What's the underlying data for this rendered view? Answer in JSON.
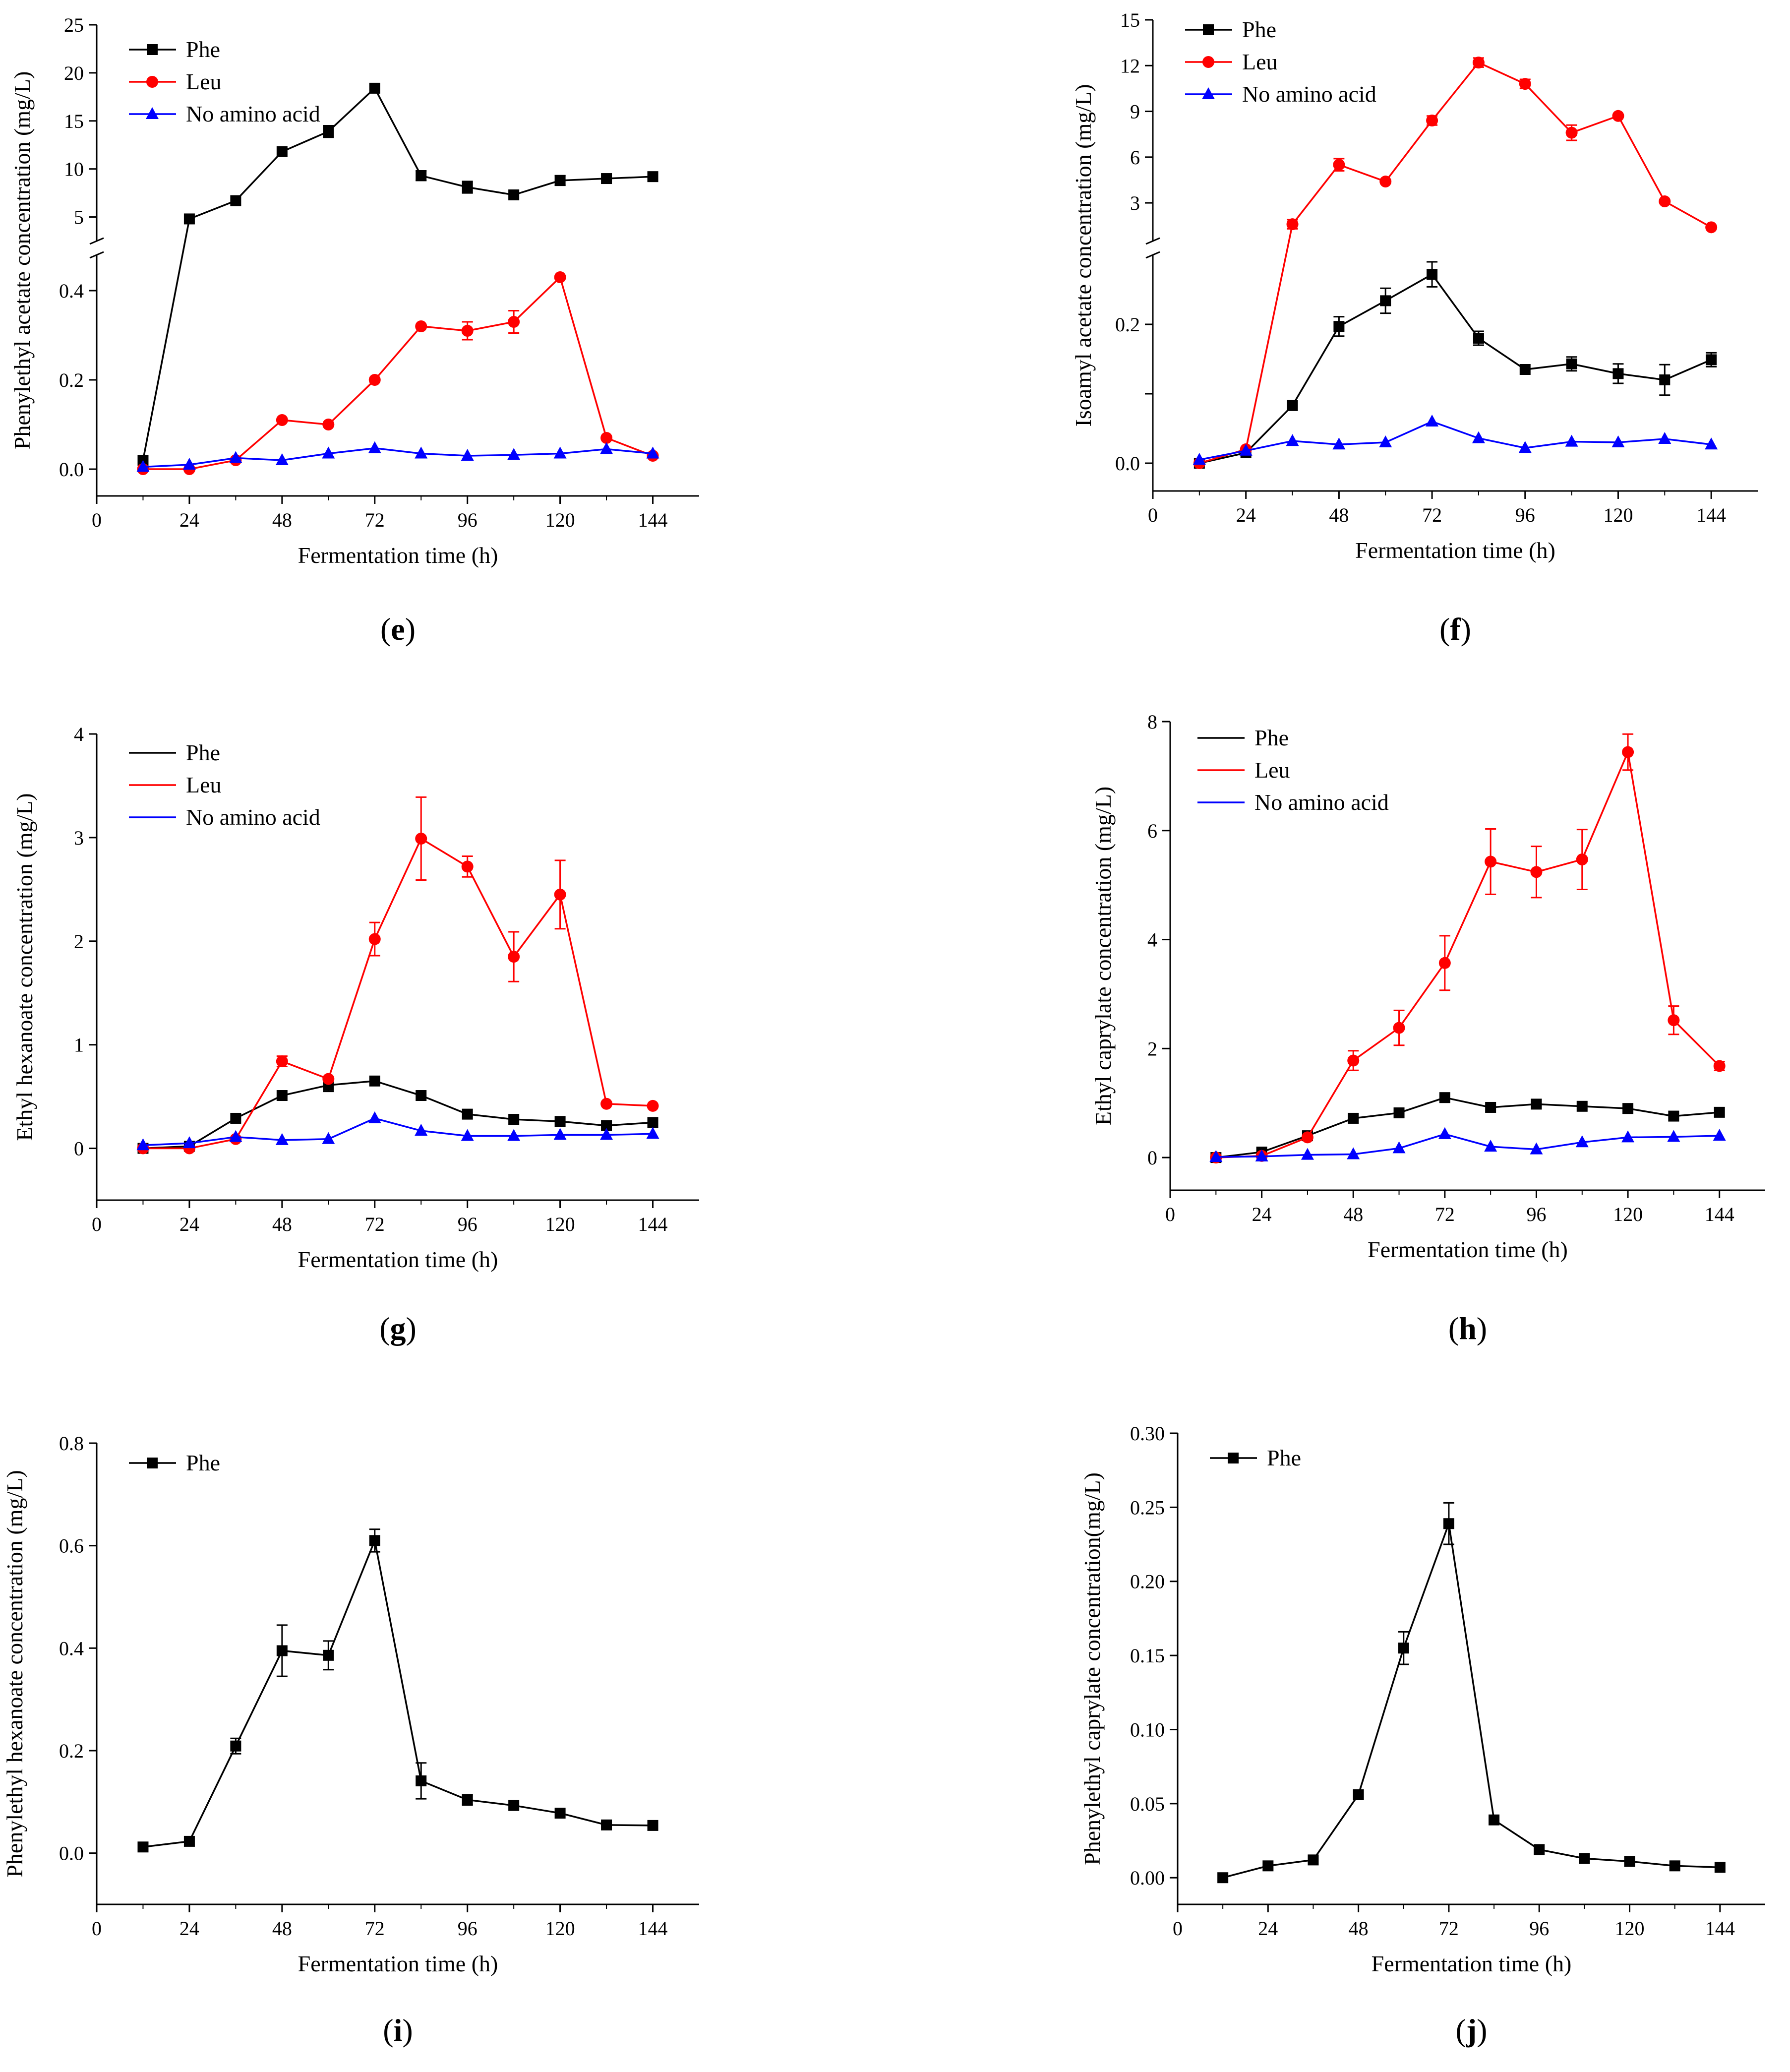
{
  "colors": {
    "Phe": "#000000",
    "Leu": "#ff0000",
    "No amino acid": "#0000ff"
  },
  "series_markers": {
    "Phe": "square",
    "Leu": "circle",
    "No amino acid": "triangle"
  },
  "chart_data": [
    {
      "id": "e",
      "label_letter": "e",
      "type": "line",
      "title": "",
      "xlabel": "Fermentation time (h)",
      "ylabel": "Phenylethyl acetate concentration (mg/L)",
      "xlim": [
        0,
        156
      ],
      "xticks": [
        "0",
        "24",
        "48",
        "72",
        "96",
        "120",
        "144"
      ],
      "broken_axis": true,
      "lower": {
        "ylim": [
          -0.06,
          0.48
        ],
        "ticks": [
          0.0,
          0.2,
          0.4
        ],
        "tick_labels": [
          "0.0",
          "0.2",
          "0.4"
        ]
      },
      "upper": {
        "ylim": [
          2.5,
          25
        ],
        "ticks": [
          5,
          10,
          15,
          20,
          25
        ],
        "tick_labels": [
          "5",
          "10",
          "15",
          "20",
          "25"
        ]
      },
      "legend_style": "side",
      "series": [
        {
          "name": "Phe",
          "x": [
            12,
            24,
            36,
            48,
            60,
            72,
            84,
            96,
            108,
            120,
            132,
            144
          ],
          "y": [
            0.02,
            4.8,
            6.7,
            11.8,
            13.9,
            18.4,
            9.3,
            8.1,
            7.3,
            8.8,
            9.0,
            9.2
          ],
          "err": [
            0,
            0,
            0,
            0,
            0.6,
            0,
            0.5,
            0.6,
            0,
            0.5,
            0,
            0
          ],
          "seg": [
            "L",
            "U",
            "U",
            "U",
            "U",
            "U",
            "U",
            "U",
            "U",
            "U",
            "U",
            "U"
          ]
        },
        {
          "name": "Leu",
          "x": [
            12,
            24,
            36,
            48,
            60,
            72,
            84,
            96,
            108,
            120,
            132,
            144
          ],
          "y": [
            0,
            0,
            0.02,
            0.11,
            0.1,
            0.2,
            0.32,
            0.31,
            0.33,
            0.43,
            0.07,
            0.03
          ],
          "err": [
            0,
            0,
            0,
            0,
            0,
            0,
            0,
            0.02,
            0.025,
            0,
            0,
            0
          ],
          "seg": [
            "L",
            "L",
            "L",
            "L",
            "L",
            "L",
            "L",
            "L",
            "L",
            "L",
            "L",
            "L"
          ]
        },
        {
          "name": "No amino acid",
          "x": [
            12,
            24,
            36,
            48,
            60,
            72,
            84,
            96,
            108,
            120,
            132,
            144
          ],
          "y": [
            0.005,
            0.01,
            0.025,
            0.02,
            0.035,
            0.047,
            0.035,
            0.03,
            0.032,
            0.035,
            0.045,
            0.035
          ],
          "err": [
            0,
            0,
            0,
            0,
            0,
            0,
            0,
            0,
            0,
            0,
            0,
            0
          ],
          "seg": [
            "L",
            "L",
            "L",
            "L",
            "L",
            "L",
            "L",
            "L",
            "L",
            "L",
            "L",
            "L"
          ]
        }
      ]
    },
    {
      "id": "f",
      "label_letter": "f",
      "type": "line",
      "title": "",
      "xlabel": "Fermentation time (h)",
      "ylabel": "Isoamyl acetate concentration (mg/L)",
      "xlim": [
        0,
        156
      ],
      "xticks": [
        "0",
        "24",
        "48",
        "72",
        "96",
        "120",
        "144"
      ],
      "broken_axis": true,
      "lower": {
        "ylim": [
          -0.04,
          0.3
        ],
        "ticks": [
          0.0,
          0.1,
          0.2
        ],
        "tick_labels": [
          "0.0",
          "",
          "0.2"
        ]
      },
      "upper": {
        "ylim": [
          0.5,
          15
        ],
        "ticks": [
          3,
          6,
          9,
          12,
          15
        ],
        "tick_labels": [
          "3",
          "6",
          "9",
          "12",
          "15"
        ]
      },
      "legend_style": "full",
      "series": [
        {
          "name": "Phe",
          "x": [
            12,
            24,
            36,
            48,
            60,
            72,
            84,
            96,
            108,
            120,
            132,
            144
          ],
          "y": [
            0,
            0.015,
            0.083,
            0.197,
            0.234,
            0.272,
            0.18,
            0.135,
            0.143,
            0.129,
            0.12,
            0.149
          ],
          "err": [
            0,
            0,
            0,
            0.014,
            0.018,
            0.018,
            0.01,
            0,
            0.01,
            0.014,
            0.022,
            0.01
          ],
          "seg": [
            "L",
            "L",
            "L",
            "L",
            "L",
            "L",
            "L",
            "L",
            "L",
            "L",
            "L",
            "L"
          ]
        },
        {
          "name": "Leu",
          "x": [
            12,
            24,
            36,
            48,
            60,
            72,
            84,
            96,
            108,
            120,
            132,
            144
          ],
          "y": [
            0,
            0.02,
            1.6,
            5.5,
            4.4,
            8.4,
            12.2,
            10.8,
            7.6,
            8.7,
            3.1,
            1.4
          ],
          "err": [
            0,
            0,
            0.3,
            0.4,
            0,
            0.3,
            0.3,
            0.3,
            0.5,
            0,
            0,
            0
          ],
          "seg": [
            "L",
            "L",
            "U",
            "U",
            "U",
            "U",
            "U",
            "U",
            "U",
            "U",
            "U",
            "U"
          ]
        },
        {
          "name": "No amino acid",
          "x": [
            12,
            24,
            36,
            48,
            60,
            72,
            84,
            96,
            108,
            120,
            132,
            144
          ],
          "y": [
            0.005,
            0.018,
            0.032,
            0.027,
            0.03,
            0.06,
            0.036,
            0.022,
            0.031,
            0.03,
            0.035,
            0.027
          ],
          "err": [
            0,
            0,
            0,
            0,
            0,
            0,
            0,
            0,
            0,
            0,
            0,
            0
          ],
          "seg": [
            "L",
            "L",
            "L",
            "L",
            "L",
            "L",
            "L",
            "L",
            "L",
            "L",
            "L",
            "L"
          ]
        }
      ]
    },
    {
      "id": "g",
      "label_letter": "g",
      "type": "line",
      "title": "",
      "xlabel": "Fermentation time (h)",
      "ylabel": "Ethyl hexanoate concentration (mg/L)",
      "xlim": [
        0,
        156
      ],
      "xticks": [
        "0",
        "24",
        "48",
        "72",
        "96",
        "120",
        "144"
      ],
      "ylim": [
        -0.5,
        4
      ],
      "yticks": [
        "0",
        "1",
        "2",
        "3",
        "4"
      ],
      "legend_style": "line",
      "series": [
        {
          "name": "Phe",
          "x": [
            12,
            24,
            36,
            48,
            60,
            72,
            84,
            96,
            108,
            120,
            132,
            144
          ],
          "y": [
            0,
            0.02,
            0.29,
            0.51,
            0.61,
            0.65,
            0.51,
            0.33,
            0.28,
            0.26,
            0.22,
            0.25
          ],
          "err": [
            0,
            0,
            0,
            0,
            0.06,
            0,
            0,
            0,
            0,
            0,
            0,
            0
          ]
        },
        {
          "name": "Leu",
          "x": [
            12,
            24,
            36,
            48,
            60,
            72,
            84,
            96,
            108,
            120,
            132,
            144
          ],
          "y": [
            0,
            0,
            0.09,
            0.84,
            0.67,
            2.02,
            2.99,
            2.72,
            1.85,
            2.45,
            0.43,
            0.41
          ],
          "err": [
            0,
            0,
            0,
            0.05,
            0,
            0.16,
            0.4,
            0.1,
            0.24,
            0.33,
            0,
            0
          ]
        },
        {
          "name": "No amino acid",
          "x": [
            12,
            24,
            36,
            48,
            60,
            72,
            84,
            96,
            108,
            120,
            132,
            144
          ],
          "y": [
            0.03,
            0.05,
            0.11,
            0.08,
            0.09,
            0.29,
            0.17,
            0.12,
            0.12,
            0.13,
            0.13,
            0.14
          ],
          "err": [
            0,
            0,
            0,
            0,
            0,
            0,
            0,
            0,
            0,
            0,
            0,
            0
          ]
        }
      ]
    },
    {
      "id": "h",
      "label_letter": "h",
      "type": "line",
      "title": "",
      "xlabel": "Fermentation time (h)",
      "ylabel": "Ethyl caprylate concentration (mg/L)",
      "xlim": [
        0,
        156
      ],
      "xticks": [
        "0",
        "24",
        "48",
        "72",
        "96",
        "120",
        "144"
      ],
      "ylim": [
        -0.6,
        8
      ],
      "yticks": [
        "0",
        "2",
        "4",
        "6",
        "8"
      ],
      "legend_style": "line",
      "series": [
        {
          "name": "Phe",
          "x": [
            12,
            24,
            36,
            48,
            60,
            72,
            84,
            96,
            108,
            120,
            132,
            144
          ],
          "y": [
            0,
            0.1,
            0.4,
            0.72,
            0.82,
            1.1,
            0.92,
            0.98,
            0.94,
            0.9,
            0.76,
            0.83
          ],
          "err": [
            0,
            0,
            0,
            0,
            0,
            0,
            0,
            0,
            0,
            0,
            0,
            0
          ]
        },
        {
          "name": "Leu",
          "x": [
            12,
            24,
            36,
            48,
            60,
            72,
            84,
            96,
            108,
            120,
            132,
            144
          ],
          "y": [
            0,
            0.03,
            0.37,
            1.78,
            2.38,
            3.57,
            5.43,
            5.24,
            5.47,
            7.44,
            2.52,
            1.68
          ],
          "err": [
            0,
            0,
            0,
            0.18,
            0.32,
            0.5,
            0.6,
            0.47,
            0.55,
            0.33,
            0.26,
            0.08
          ]
        },
        {
          "name": "No amino acid",
          "x": [
            12,
            24,
            36,
            48,
            60,
            72,
            84,
            96,
            108,
            120,
            132,
            144
          ],
          "y": [
            0.01,
            0.02,
            0.05,
            0.06,
            0.17,
            0.43,
            0.2,
            0.15,
            0.28,
            0.37,
            0.38,
            0.4
          ],
          "err": [
            0,
            0,
            0,
            0,
            0,
            0,
            0,
            0,
            0,
            0,
            0,
            0
          ]
        }
      ]
    },
    {
      "id": "i",
      "label_letter": "i",
      "type": "line",
      "title": "",
      "xlabel": "Fermentation time (h)",
      "ylabel": "Phenylethyl hexanoate concentration (mg/L)",
      "xlim": [
        0,
        156
      ],
      "xticks": [
        "0",
        "24",
        "48",
        "72",
        "96",
        "120",
        "144"
      ],
      "ylim": [
        -0.1,
        0.8
      ],
      "yticks": [
        "0.0",
        "0.2",
        "0.4",
        "0.6",
        "0.8"
      ],
      "legend_style": "full",
      "series": [
        {
          "name": "Phe",
          "x": [
            12,
            24,
            36,
            48,
            60,
            72,
            84,
            96,
            108,
            120,
            132,
            144
          ],
          "y": [
            0.012,
            0.023,
            0.209,
            0.395,
            0.386,
            0.61,
            0.141,
            0.104,
            0.093,
            0.078,
            0.055,
            0.054
          ],
          "err": [
            0,
            0,
            0.015,
            0.05,
            0.028,
            0.022,
            0.035,
            0.01,
            0,
            0,
            0,
            0
          ]
        }
      ]
    },
    {
      "id": "j",
      "label_letter": "j",
      "type": "line",
      "title": "",
      "xlabel": "Fermentation time (h)",
      "ylabel": "Phenylethyl caprylate concentration(mg/L)",
      "xlim": [
        0,
        156
      ],
      "xticks": [
        "0",
        "24",
        "48",
        "72",
        "96",
        "120",
        "144"
      ],
      "ylim": [
        -0.018,
        0.3
      ],
      "yticks": [
        "0.00",
        "0.05",
        "0.10",
        "0.15",
        "0.20",
        "0.25",
        "0.30"
      ],
      "legend_style": "full",
      "series": [
        {
          "name": "Phe",
          "x": [
            12,
            24,
            36,
            48,
            60,
            72,
            84,
            96,
            108,
            120,
            132,
            144
          ],
          "y": [
            0,
            0.008,
            0.012,
            0.056,
            0.155,
            0.239,
            0.039,
            0.019,
            0.013,
            0.011,
            0.008,
            0.007
          ],
          "err": [
            0,
            0,
            0,
            0,
            0.011,
            0.014,
            0,
            0,
            0,
            0,
            0,
            0
          ]
        }
      ]
    }
  ]
}
